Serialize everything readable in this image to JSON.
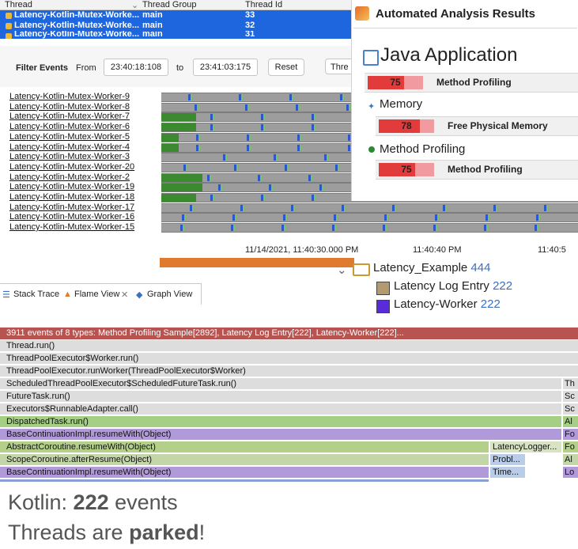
{
  "thread_table": {
    "headers": [
      "Thread",
      "Thread Group",
      "Thread Id"
    ],
    "rows": [
      {
        "thread": "Latency-Kotlin-Mutex-Worke...",
        "group": "main",
        "id": "33"
      },
      {
        "thread": "Latency-Kotlin-Mutex-Worke...",
        "group": "main",
        "id": "32"
      },
      {
        "thread": "Latency-Kotlin-Mutex-Worke...",
        "group": "main",
        "id": "31"
      }
    ]
  },
  "filter": {
    "title": "Filter Events",
    "from_label": "From",
    "from_value": "23:40:18:108",
    "to_label": "to",
    "to_value": "23:41:03:175",
    "reset_label": "Reset",
    "thread_label": "Thre"
  },
  "lanes": [
    "Latency-Kotlin-Mutex-Worker-9",
    "Latency-Kotlin-Mutex-Worker-8",
    "Latency-Kotlin-Mutex-Worker-7",
    "Latency-Kotlin-Mutex-Worker-6",
    "Latency-Kotlin-Mutex-Worker-5",
    "Latency-Kotlin-Mutex-Worker-4",
    "Latency-Kotlin-Mutex-Worker-3",
    "Latency-Kotlin-Mutex-Worker-20",
    "Latency-Kotlin-Mutex-Worker-2",
    "Latency-Kotlin-Mutex-Worker-19",
    "Latency-Kotlin-Mutex-Worker-18",
    "Latency-Kotlin-Mutex-Worker-17",
    "Latency-Kotlin-Mutex-Worker-16",
    "Latency-Kotlin-Mutex-Worker-15"
  ],
  "axis": {
    "t1": "11/14/2021, 11:40:30.000 PM",
    "t2": "11:40:40 PM",
    "t3": "11:40:5"
  },
  "analysis": {
    "title": "Automated Analysis Results",
    "app_heading": "Java Application",
    "rows": [
      {
        "score": "75",
        "label": "Method Profiling"
      }
    ],
    "memory_heading": "Memory",
    "memory_row": {
      "score": "78",
      "label": "Free Physical Memory"
    },
    "profiling_heading": "Method Profiling",
    "profiling_row": {
      "score": "75",
      "label": "Method Profiling"
    }
  },
  "tree": {
    "root": "Latency_Example",
    "root_count": "444",
    "items": [
      {
        "label": "Latency Log Entry",
        "count": "222",
        "color": "#b39b6d"
      },
      {
        "label": "Latency-Worker",
        "count": "222",
        "color": "#5a2bdc"
      }
    ]
  },
  "tabs": [
    "Stack Trace",
    "Flame View",
    "Graph View"
  ],
  "flame": {
    "header": "3911 events of 8 types: Method Profiling Sample[2892], Latency Log Entry[222], Latency-Worker[222]...",
    "frames": [
      {
        "label": "Thread.run()",
        "side": ""
      },
      {
        "label": "ThreadPoolExecutor$Worker.run()",
        "side": ""
      },
      {
        "label": "ThreadPoolExecutor.runWorker(ThreadPoolExecutor$Worker)",
        "side": ""
      },
      {
        "label": "ScheduledThreadPoolExecutor$ScheduledFutureTask.run()",
        "side": "Th"
      },
      {
        "label": "FutureTask.run()",
        "side": "Sc"
      },
      {
        "label": "Executors$RunnableAdapter.call()",
        "side": "Sc"
      },
      {
        "label": "DispatchedTask.run()",
        "side": "Al"
      },
      {
        "label": "BaseContinuationImpl.resumeWith(Object)",
        "side": "Fo"
      },
      {
        "label": "AbstractCoroutine.resumeWith(Object)",
        "side": "Fo",
        "mid": "LatencyLogger..."
      },
      {
        "label": "ScopeCoroutine.afterResume(Object)",
        "side": "Al",
        "mid": "Probl..."
      },
      {
        "label": "BaseContinuationImpl.resumeWith(Object)",
        "side": "Lo",
        "mid": "Time..."
      }
    ]
  },
  "footer": {
    "line1_pre": "Kotlin: ",
    "line1_bold": "222",
    "line1_post": " events",
    "line2_pre": "Threads are ",
    "line2_bold": "parked",
    "line2_post": "!"
  }
}
